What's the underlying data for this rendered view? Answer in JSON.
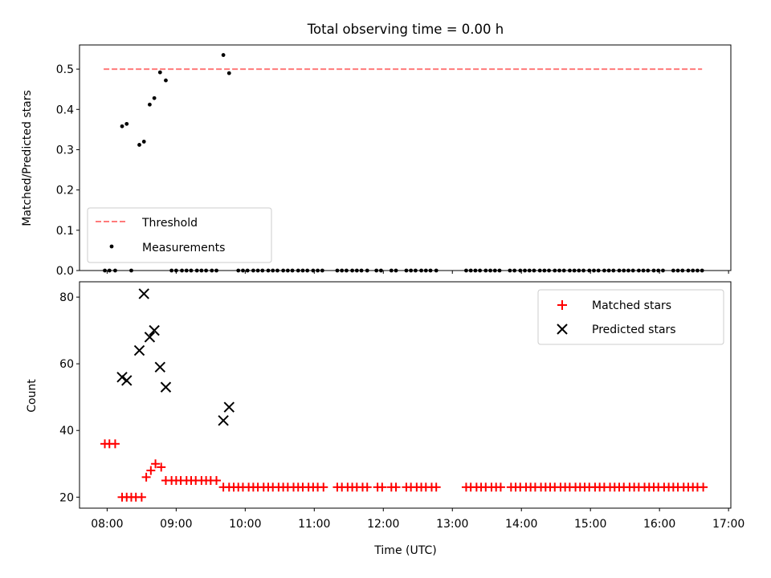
{
  "chart_data": [
    {
      "type": "scatter",
      "title": "Total observing time = 0.00 h",
      "xlabel": "",
      "ylabel": "Matched/Predicted stars",
      "xlim": [
        "07:36",
        "17:02"
      ],
      "ylim": [
        0,
        0.56
      ],
      "yticks": [
        0.0,
        0.1,
        0.2,
        0.3,
        0.4,
        0.5
      ],
      "ytick_labels": [
        "0.0",
        "0.1",
        "0.2",
        "0.3",
        "0.4",
        "0.5"
      ],
      "legend_position": "lower-left",
      "threshold": {
        "name": "Threshold",
        "value": 0.5,
        "x_range": [
          "07:57",
          "16:37"
        ],
        "color": "#ff7a7a",
        "style": "dashed"
      },
      "series": [
        {
          "name": "Measurements",
          "color": "#000000",
          "marker": "dot",
          "points": [
            [
              "08:13",
              0.358
            ],
            [
              "08:17",
              0.364
            ],
            [
              "08:28",
              0.312
            ],
            [
              "08:32",
              0.32
            ],
            [
              "08:37",
              0.412
            ],
            [
              "08:41",
              0.428
            ],
            [
              "08:46",
              0.492
            ],
            [
              "08:51",
              0.472
            ],
            [
              "09:41",
              0.535
            ],
            [
              "09:46",
              0.49
            ]
          ],
          "zero_times": [
            "07:58",
            "08:02",
            "08:07",
            "08:21",
            "08:56",
            "09:00",
            "09:05",
            "09:09",
            "09:13",
            "09:18",
            "09:22",
            "09:26",
            "09:31",
            "09:35",
            "09:54",
            "09:58",
            "10:02",
            "10:07",
            "10:11",
            "10:15",
            "10:20",
            "10:24",
            "10:28",
            "10:33",
            "10:37",
            "10:41",
            "10:46",
            "10:50",
            "10:54",
            "10:59",
            "11:03",
            "11:07",
            "11:20",
            "11:24",
            "11:28",
            "11:33",
            "11:37",
            "11:41",
            "11:46",
            "11:54",
            "11:58",
            "12:07",
            "12:11",
            "12:20",
            "12:24",
            "12:28",
            "12:33",
            "12:37",
            "12:41",
            "12:46",
            "13:12",
            "13:16",
            "13:20",
            "13:24",
            "13:29",
            "13:33",
            "13:37",
            "13:41",
            "13:50",
            "13:54",
            "13:59",
            "14:03",
            "14:07",
            "14:11",
            "14:16",
            "14:20",
            "14:24",
            "14:29",
            "14:33",
            "14:37",
            "14:42",
            "14:46",
            "14:50",
            "14:54",
            "14:59",
            "15:03",
            "15:07",
            "15:12",
            "15:16",
            "15:20",
            "15:25",
            "15:29",
            "15:33",
            "15:37",
            "15:42",
            "15:46",
            "15:50",
            "15:55",
            "15:59",
            "16:03",
            "16:12",
            "16:16",
            "16:20",
            "16:25",
            "16:29",
            "16:33",
            "16:37"
          ]
        }
      ]
    },
    {
      "type": "scatter",
      "title": "",
      "xlabel": "Time (UTC)",
      "ylabel": "Count",
      "xlim": [
        "07:36",
        "17:02"
      ],
      "ylim": [
        16.7,
        84.6
      ],
      "xticks": [
        "08:00",
        "09:00",
        "10:00",
        "11:00",
        "12:00",
        "13:00",
        "14:00",
        "15:00",
        "16:00",
        "17:00"
      ],
      "yticks": [
        20,
        40,
        60,
        80
      ],
      "legend_position": "top-right",
      "series": [
        {
          "name": "Matched stars",
          "color": "#ff0000",
          "marker": "plus",
          "points": [
            [
              "07:58",
              36
            ],
            [
              "08:02",
              36
            ],
            [
              "08:07",
              36
            ],
            [
              "08:13",
              20
            ],
            [
              "08:17",
              20
            ],
            [
              "08:21",
              20
            ],
            [
              "08:25",
              20
            ],
            [
              "08:30",
              20
            ],
            [
              "08:34",
              26
            ],
            [
              "08:38",
              28
            ],
            [
              "08:42",
              30
            ],
            [
              "08:47",
              29
            ],
            [
              "08:51",
              25
            ],
            [
              "08:56",
              25
            ],
            [
              "09:00",
              25
            ],
            [
              "09:04",
              25
            ],
            [
              "09:09",
              25
            ],
            [
              "09:13",
              25
            ],
            [
              "09:17",
              25
            ],
            [
              "09:22",
              25
            ],
            [
              "09:26",
              25
            ],
            [
              "09:30",
              25
            ],
            [
              "09:35",
              25
            ],
            [
              "09:41",
              23
            ],
            [
              "09:46",
              23
            ],
            [
              "09:50",
              23
            ],
            [
              "09:54",
              23
            ],
            [
              "09:58",
              23
            ],
            [
              "10:03",
              23
            ],
            [
              "10:07",
              23
            ],
            [
              "10:11",
              23
            ],
            [
              "10:16",
              23
            ],
            [
              "10:20",
              23
            ],
            [
              "10:24",
              23
            ],
            [
              "10:29",
              23
            ],
            [
              "10:33",
              23
            ],
            [
              "10:37",
              23
            ],
            [
              "10:42",
              23
            ],
            [
              "10:46",
              23
            ],
            [
              "10:50",
              23
            ],
            [
              "10:55",
              23
            ],
            [
              "10:59",
              23
            ],
            [
              "11:03",
              23
            ],
            [
              "11:08",
              23
            ],
            [
              "11:20",
              23
            ],
            [
              "11:24",
              23
            ],
            [
              "11:29",
              23
            ],
            [
              "11:33",
              23
            ],
            [
              "11:37",
              23
            ],
            [
              "11:42",
              23
            ],
            [
              "11:46",
              23
            ],
            [
              "11:55",
              23
            ],
            [
              "11:59",
              23
            ],
            [
              "12:07",
              23
            ],
            [
              "12:11",
              23
            ],
            [
              "12:20",
              23
            ],
            [
              "12:24",
              23
            ],
            [
              "12:29",
              23
            ],
            [
              "12:33",
              23
            ],
            [
              "12:37",
              23
            ],
            [
              "12:42",
              23
            ],
            [
              "12:46",
              23
            ],
            [
              "13:12",
              23
            ],
            [
              "13:16",
              23
            ],
            [
              "13:21",
              23
            ],
            [
              "13:25",
              23
            ],
            [
              "13:29",
              23
            ],
            [
              "13:34",
              23
            ],
            [
              "13:38",
              23
            ],
            [
              "13:42",
              23
            ],
            [
              "13:51",
              23
            ],
            [
              "13:55",
              23
            ],
            [
              "13:59",
              23
            ],
            [
              "14:04",
              23
            ],
            [
              "14:08",
              23
            ],
            [
              "14:12",
              23
            ],
            [
              "14:17",
              23
            ],
            [
              "14:21",
              23
            ],
            [
              "14:25",
              23
            ],
            [
              "14:29",
              23
            ],
            [
              "14:34",
              23
            ],
            [
              "14:38",
              23
            ],
            [
              "14:42",
              23
            ],
            [
              "14:47",
              23
            ],
            [
              "14:51",
              23
            ],
            [
              "14:55",
              23
            ],
            [
              "14:59",
              23
            ],
            [
              "15:04",
              23
            ],
            [
              "15:08",
              23
            ],
            [
              "15:12",
              23
            ],
            [
              "15:17",
              23
            ],
            [
              "15:21",
              23
            ],
            [
              "15:25",
              23
            ],
            [
              "15:29",
              23
            ],
            [
              "15:34",
              23
            ],
            [
              "15:38",
              23
            ],
            [
              "15:42",
              23
            ],
            [
              "15:47",
              23
            ],
            [
              "15:51",
              23
            ],
            [
              "15:55",
              23
            ],
            [
              "15:59",
              23
            ],
            [
              "16:04",
              23
            ],
            [
              "16:08",
              23
            ],
            [
              "16:12",
              23
            ],
            [
              "16:16",
              23
            ],
            [
              "16:21",
              23
            ],
            [
              "16:25",
              23
            ],
            [
              "16:29",
              23
            ],
            [
              "16:33",
              23
            ],
            [
              "16:38",
              23
            ]
          ]
        },
        {
          "name": "Predicted stars",
          "color": "#000000",
          "marker": "x",
          "points": [
            [
              "08:13",
              56
            ],
            [
              "08:17",
              55
            ],
            [
              "08:28",
              64
            ],
            [
              "08:32",
              81
            ],
            [
              "08:37",
              68
            ],
            [
              "08:41",
              70
            ],
            [
              "08:46",
              59
            ],
            [
              "08:51",
              53
            ],
            [
              "09:41",
              43
            ],
            [
              "09:46",
              47
            ]
          ]
        }
      ]
    }
  ]
}
